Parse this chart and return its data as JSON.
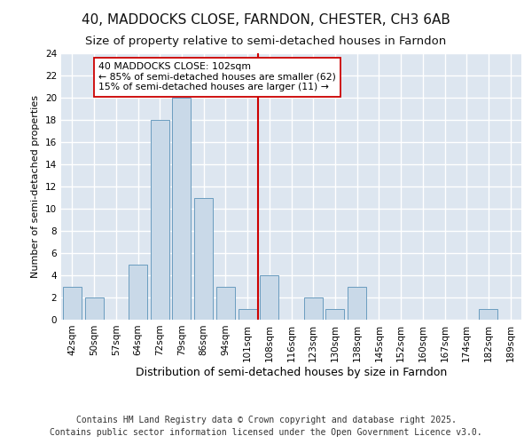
{
  "title": "40, MADDOCKS CLOSE, FARNDON, CHESTER, CH3 6AB",
  "subtitle": "Size of property relative to semi-detached houses in Farndon",
  "xlabel": "Distribution of semi-detached houses by size in Farndon",
  "ylabel": "Number of semi-detached properties",
  "categories": [
    "42sqm",
    "50sqm",
    "57sqm",
    "64sqm",
    "72sqm",
    "79sqm",
    "86sqm",
    "94sqm",
    "101sqm",
    "108sqm",
    "116sqm",
    "123sqm",
    "130sqm",
    "138sqm",
    "145sqm",
    "152sqm",
    "160sqm",
    "167sqm",
    "174sqm",
    "182sqm",
    "189sqm"
  ],
  "values": [
    3,
    2,
    0,
    5,
    18,
    20,
    11,
    3,
    1,
    4,
    0,
    2,
    1,
    3,
    0,
    0,
    0,
    0,
    0,
    1,
    0
  ],
  "bar_color": "#c9d9e8",
  "bar_edgecolor": "#6a9cbf",
  "vline_color": "#cc0000",
  "annotation_text": "40 MADDOCKS CLOSE: 102sqm\n← 85% of semi-detached houses are smaller (62)\n15% of semi-detached houses are larger (11) →",
  "annotation_box_edgecolor": "#cc0000",
  "annotation_box_facecolor": "#ffffff",
  "ylim": [
    0,
    24
  ],
  "yticks": [
    0,
    2,
    4,
    6,
    8,
    10,
    12,
    14,
    16,
    18,
    20,
    22,
    24
  ],
  "background_color": "#dde6f0",
  "grid_color": "#ffffff",
  "footer_line1": "Contains HM Land Registry data © Crown copyright and database right 2025.",
  "footer_line2": "Contains public sector information licensed under the Open Government Licence v3.0.",
  "title_fontsize": 11,
  "subtitle_fontsize": 9.5,
  "xlabel_fontsize": 9,
  "ylabel_fontsize": 8,
  "tick_fontsize": 7.5,
  "footer_fontsize": 7
}
